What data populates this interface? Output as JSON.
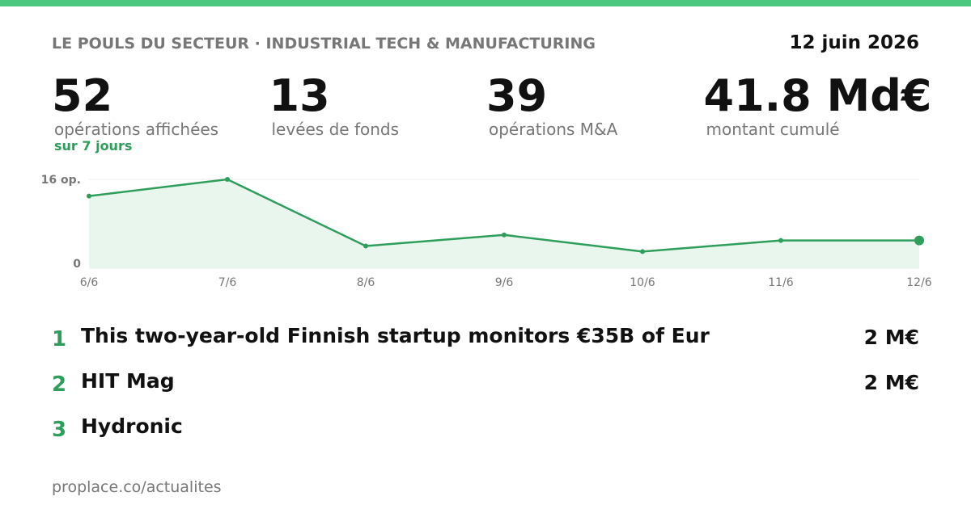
{
  "header": {
    "title": "LE POULS DU SECTEUR · INDUSTRIAL TECH & MANUFACTURING",
    "date": "12 juin 2026"
  },
  "stats": [
    {
      "value": "52",
      "label": "opérations affichées",
      "note": "sur 7 jours"
    },
    {
      "value": "13",
      "label": "levées de fonds"
    },
    {
      "value": "39",
      "label": "opérations M&A"
    },
    {
      "value": "41.8 Md€",
      "label": "montant cumulé"
    }
  ],
  "chart_data": {
    "type": "line",
    "categories": [
      "6/6",
      "7/6",
      "8/6",
      "9/6",
      "10/6",
      "11/6",
      "12/6"
    ],
    "values": [
      13,
      16,
      4,
      6,
      3,
      5,
      5
    ],
    "color": "#2e9e5b",
    "fill": "#e8f6ee",
    "ylim": [
      0,
      16
    ],
    "yticks": [
      0,
      {
        "value": 16,
        "label": "16 op."
      }
    ],
    "grid": true
  },
  "list": [
    {
      "rank": "1",
      "title": "This two-year-old Finnish startup monitors €35B of Eur",
      "amount": "2 M€"
    },
    {
      "rank": "2",
      "title": "HIT Mag",
      "amount": "2 M€"
    },
    {
      "rank": "3",
      "title": "Hydronic"
    }
  ],
  "footer": "proplace.co/actualites"
}
